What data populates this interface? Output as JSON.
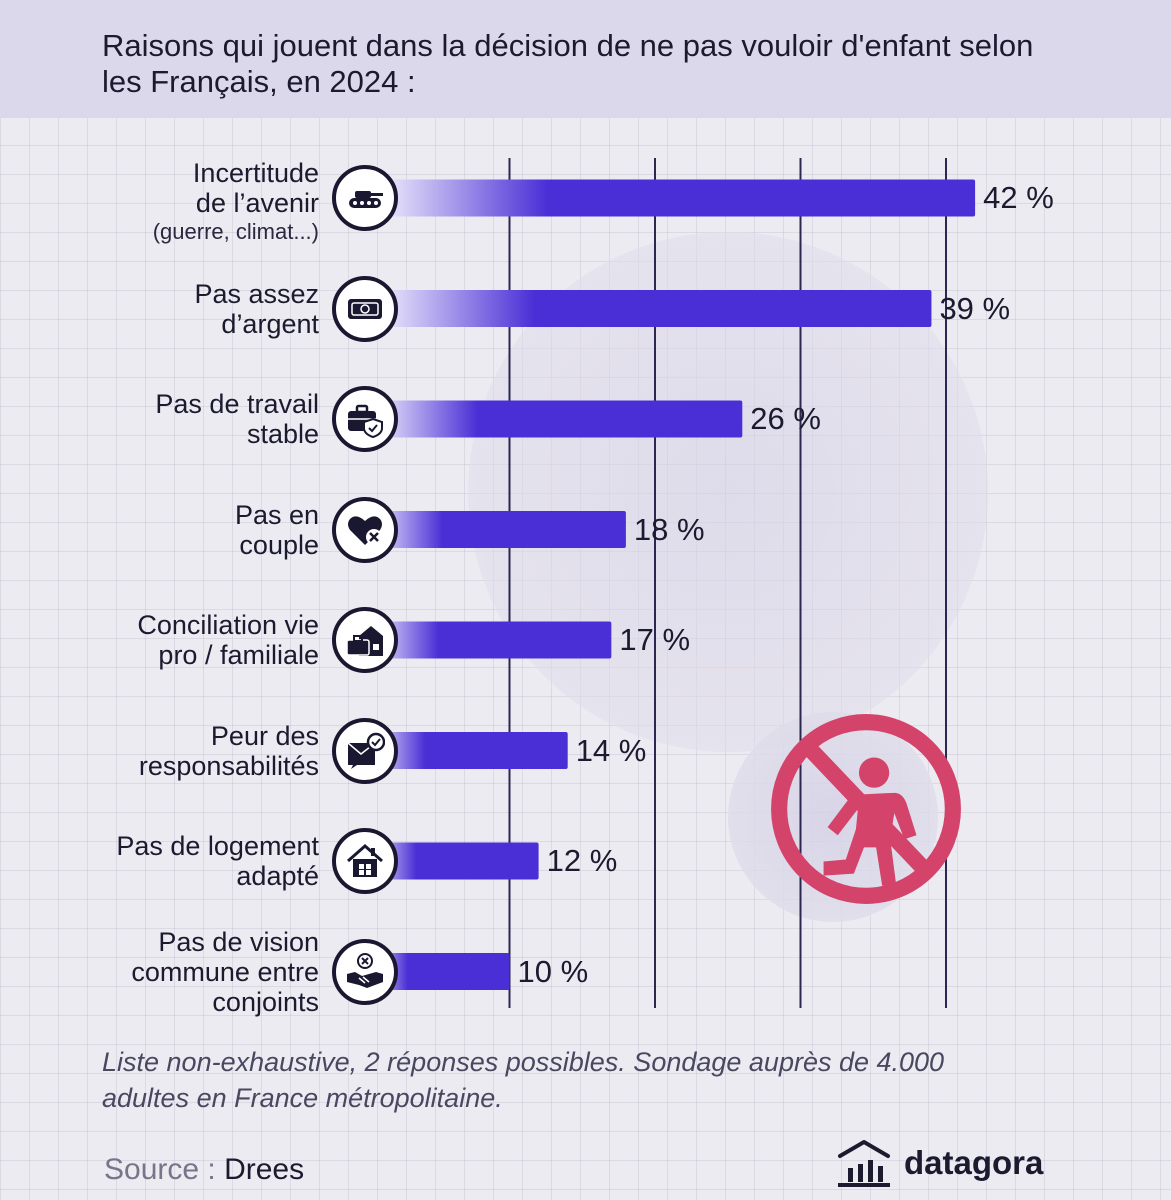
{
  "title": "Raisons qui jouent dans la décision de ne pas vouloir d'enfant selon les Français, en 2024 :",
  "chart_data": {
    "type": "bar",
    "orientation": "horizontal",
    "unit": "%",
    "xlim": [
      0,
      50
    ],
    "gridlines": [
      10,
      20,
      30,
      40
    ],
    "categories": [
      {
        "lines": [
          "Incertitude",
          "de l’avenir"
        ],
        "sub": "(guerre, climat...)",
        "value": 42,
        "value_label": "42 %",
        "icon": "tank-icon"
      },
      {
        "lines": [
          "Pas assez",
          "d’argent"
        ],
        "sub": "",
        "value": 39,
        "value_label": "39 %",
        "icon": "banknote-icon"
      },
      {
        "lines": [
          "Pas de travail",
          "stable"
        ],
        "sub": "",
        "value": 26,
        "value_label": "26 %",
        "icon": "briefcase-shield-icon"
      },
      {
        "lines": [
          "Pas en",
          "couple"
        ],
        "sub": "",
        "value": 18,
        "value_label": "18 %",
        "icon": "broken-heart-icon"
      },
      {
        "lines": [
          "Conciliation vie",
          "pro / familiale"
        ],
        "sub": "",
        "value": 17,
        "value_label": "17 %",
        "icon": "house-briefcase-icon"
      },
      {
        "lines": [
          "Peur des",
          "responsabilités"
        ],
        "sub": "",
        "value": 14,
        "value_label": "14 %",
        "icon": "envelope-check-icon"
      },
      {
        "lines": [
          "Pas de logement",
          "adapté"
        ],
        "sub": "",
        "value": 12,
        "value_label": "12 %",
        "icon": "house-icon"
      },
      {
        "lines": [
          "Pas de vision",
          "commune entre",
          "conjoints"
        ],
        "sub": "",
        "value": 10,
        "value_label": "10 %",
        "icon": "handshake-x-icon"
      }
    ]
  },
  "footnote": "Liste non-exhaustive, 2 réponses possibles. Sondage auprès de 4.000 adultes en France métropolitaine.",
  "source": {
    "label": "Source :",
    "value": "Drees"
  },
  "brand": {
    "name": "datagora"
  },
  "colors": {
    "bar": "#4a2fd6",
    "bar_fade": "#ffffff",
    "grid": "#2a2850",
    "accent_red": "#d4436a",
    "header_bg": "#dcd8ec"
  }
}
